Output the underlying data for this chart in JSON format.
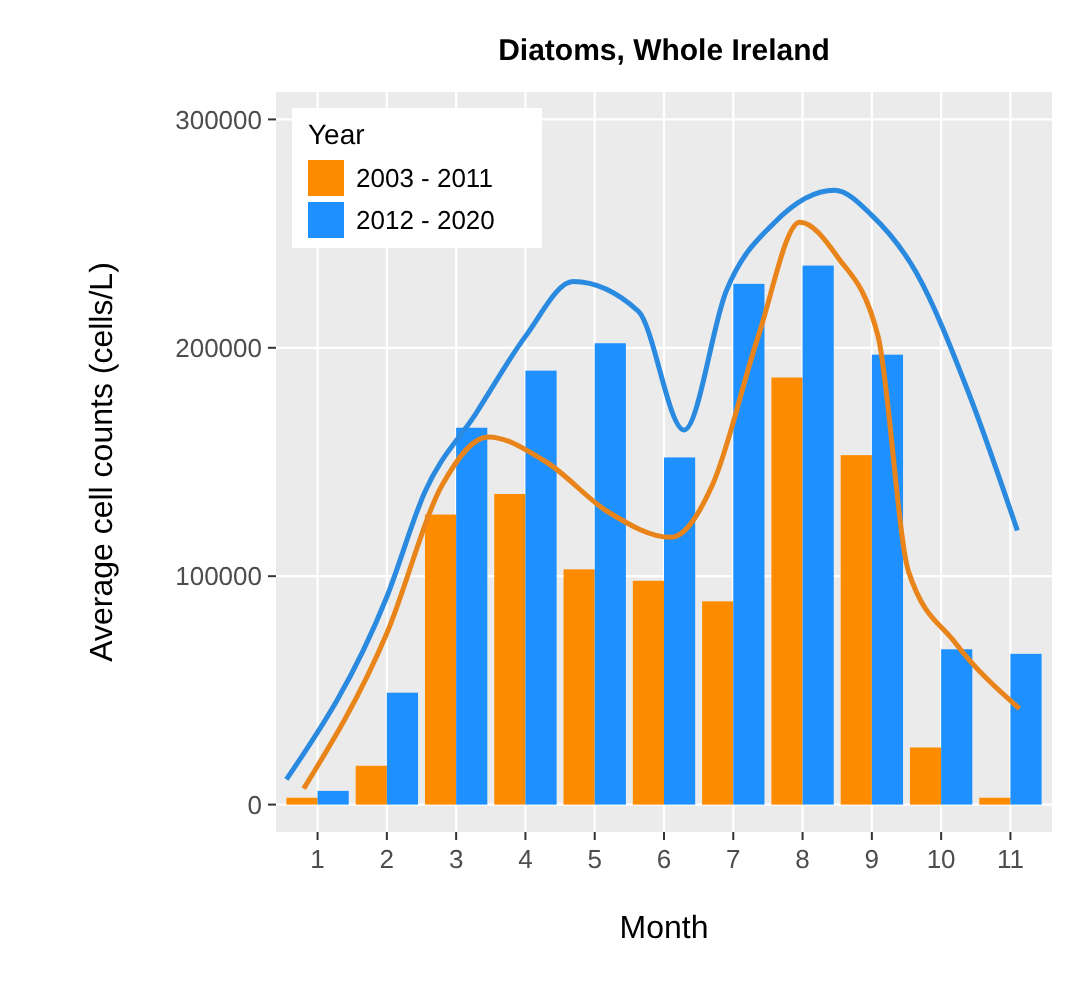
{
  "chart_data": {
    "type": "bar",
    "title": "Diatoms, Whole Ireland",
    "xlabel": "Month",
    "ylabel": "Average cell counts (cells/L)",
    "legend_title": "Year",
    "x": [
      1,
      2,
      3,
      4,
      5,
      6,
      7,
      8,
      9,
      10,
      11
    ],
    "xlim": [
      0.4,
      11.6
    ],
    "xticks": [
      1,
      2,
      3,
      4,
      5,
      6,
      7,
      8,
      9,
      10,
      11
    ],
    "ylim": [
      -12000,
      312000
    ],
    "yticks": [
      0,
      100000,
      200000,
      300000
    ],
    "grid": true,
    "legend": "top left",
    "series": [
      {
        "name": "2003 - 2011",
        "color": "#ff8c00",
        "values": [
          3000,
          17000,
          127000,
          136000,
          103000,
          98000,
          89000,
          187000,
          153000,
          25000,
          3000
        ]
      },
      {
        "name": "2012 - 2020",
        "color": "#1e90ff",
        "values": [
          6000,
          49000,
          165000,
          190000,
          202000,
          152000,
          228000,
          236000,
          197000,
          68000,
          66000
        ]
      },
      {
        "type": "line",
        "color": "#e8841a",
        "x": [
          0.8,
          2.0,
          2.8,
          3.46,
          4.3,
          5.2,
          6.1,
          6.7,
          7.36,
          7.96,
          8.5,
          9.09,
          9.53,
          10.2,
          11.13
        ],
        "values": [
          7000,
          75000,
          140000,
          161000,
          150000,
          128000,
          117000,
          140000,
          205000,
          255000,
          240000,
          205000,
          102000,
          71000,
          42000
        ]
      },
      {
        "type": "line",
        "color": "#2a8ae0",
        "x": [
          0.55,
          2.0,
          2.55,
          3.28,
          4.0,
          4.69,
          5.63,
          6.29,
          6.9,
          7.6,
          8.46,
          9.0,
          9.64,
          10.4,
          11.1
        ],
        "values": [
          11000,
          91000,
          137000,
          171000,
          205000,
          229000,
          216000,
          164000,
          225000,
          255000,
          269000,
          258000,
          233000,
          180000,
          120000
        ]
      }
    ]
  }
}
